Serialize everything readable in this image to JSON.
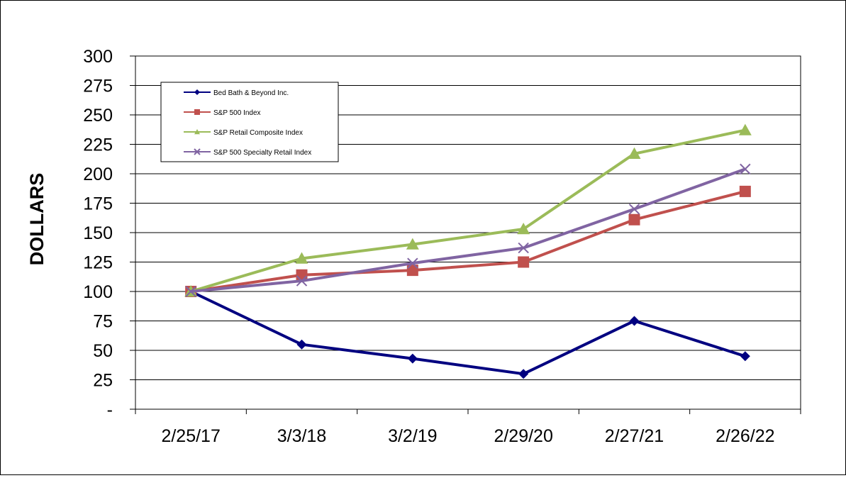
{
  "chart_data": {
    "type": "line",
    "title": "",
    "xlabel": "",
    "ylabel": "DOLLARS",
    "ylim": [
      0,
      300
    ],
    "yticks": [
      0,
      25,
      50,
      75,
      100,
      125,
      150,
      175,
      200,
      225,
      250,
      275,
      300
    ],
    "ytick_labels": [
      "-",
      "25",
      "50",
      "75",
      "100",
      "125",
      "150",
      "175",
      "200",
      "225",
      "250",
      "275",
      "300"
    ],
    "categories": [
      "2/25/17",
      "3/3/18",
      "3/2/19",
      "2/29/20",
      "2/27/21",
      "2/26/22"
    ],
    "grid": true,
    "legend_position": "top-left",
    "series": [
      {
        "name": "Bed Bath & Beyond Inc.",
        "color": "#000080",
        "marker": "diamond",
        "values": [
          100,
          55,
          43,
          30,
          75,
          45
        ]
      },
      {
        "name": "S&P  500 Index",
        "color": "#C0504D",
        "marker": "square",
        "values": [
          100,
          114,
          118,
          125,
          161,
          185
        ]
      },
      {
        "name": "S&P  Retail Composite Index",
        "color": "#9BBB59",
        "marker": "triangle",
        "values": [
          100,
          128,
          140,
          153,
          217,
          237
        ]
      },
      {
        "name": "S&P  500 Specialty Retail Index",
        "color": "#8064A2",
        "marker": "x",
        "values": [
          100,
          109,
          124,
          137,
          170,
          204
        ]
      }
    ]
  }
}
